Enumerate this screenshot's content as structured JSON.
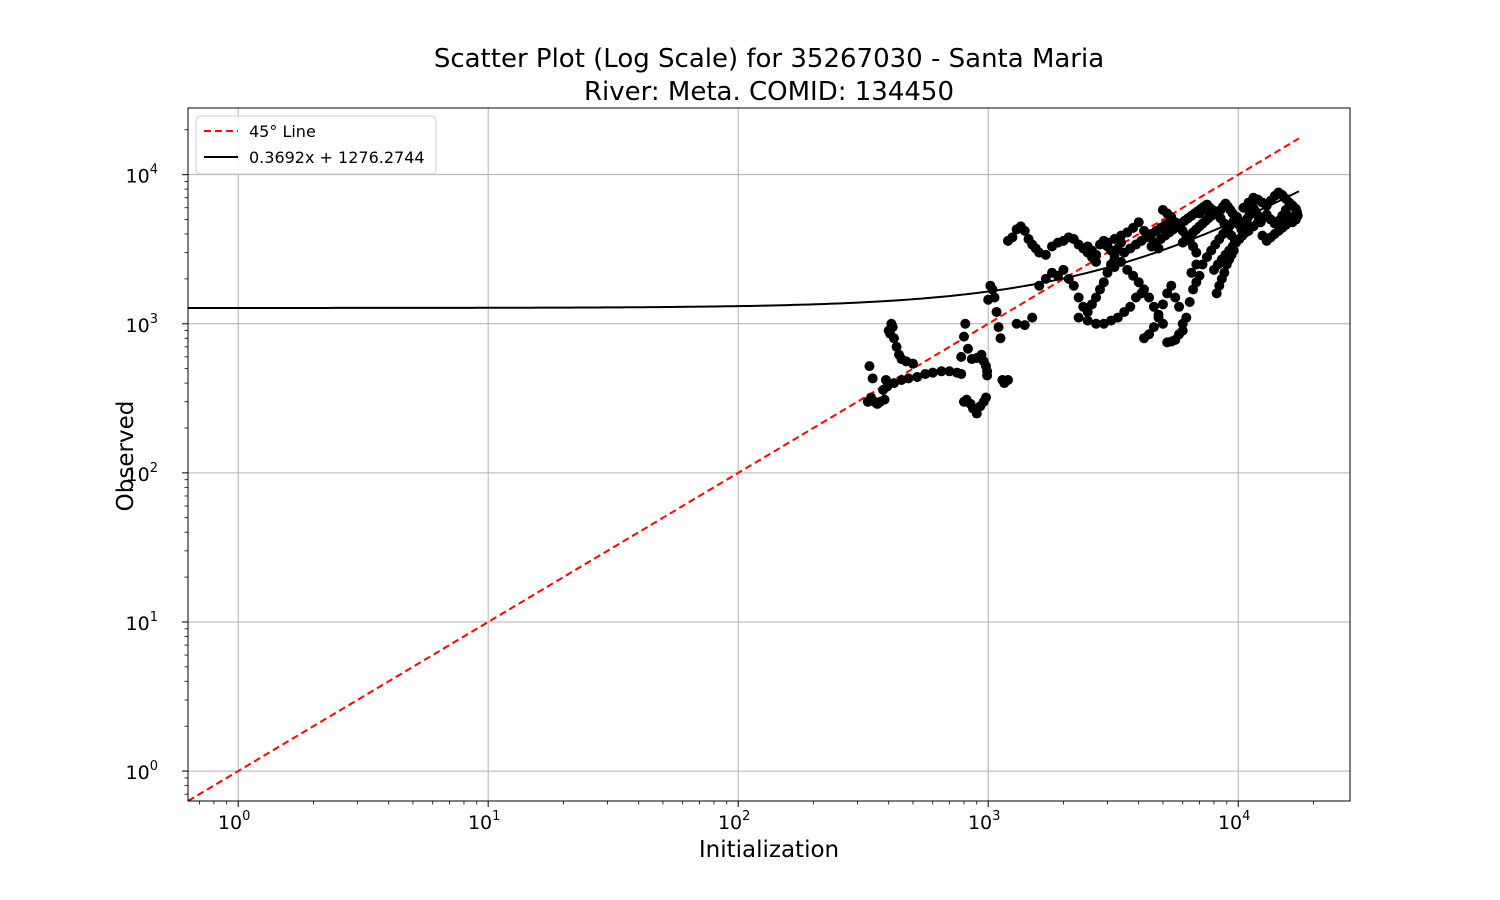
{
  "chart_data": {
    "type": "scatter",
    "title_line1": "Scatter Plot (Log Scale) for 35267030 - Santa Maria",
    "title_line2": "River: Meta. COMID: 134450",
    "xlabel": "Initialization",
    "ylabel": "Observed",
    "x_scale": "log",
    "y_scale": "log",
    "xlim": [
      0.63,
      28000
    ],
    "ylim": [
      0.63,
      28000
    ],
    "grid": true,
    "legend_position": "top-left",
    "x_ticks": [
      {
        "base": "10",
        "exp": "0",
        "value": 1
      },
      {
        "base": "10",
        "exp": "1",
        "value": 10
      },
      {
        "base": "10",
        "exp": "2",
        "value": 100
      },
      {
        "base": "10",
        "exp": "3",
        "value": 1000
      },
      {
        "base": "10",
        "exp": "4",
        "value": 10000
      }
    ],
    "y_ticks": [
      {
        "base": "10",
        "exp": "0",
        "value": 1
      },
      {
        "base": "10",
        "exp": "1",
        "value": 10
      },
      {
        "base": "10",
        "exp": "2",
        "value": 100
      },
      {
        "base": "10",
        "exp": "3",
        "value": 1000
      },
      {
        "base": "10",
        "exp": "4",
        "value": 10000
      }
    ],
    "legend": [
      {
        "label": "45° Line",
        "color": "#ff0000",
        "style": "dashed"
      },
      {
        "label": "0.3692x + 1276.2744",
        "color": "#000000",
        "style": "solid"
      }
    ],
    "lines": {
      "identity": {
        "x": [
          0.63,
          17500
        ],
        "y": [
          0.63,
          17500
        ],
        "color": "#ff0000"
      },
      "fit": {
        "slope": 0.3692,
        "intercept": 1276.2744,
        "x_range": [
          0.63,
          17500
        ],
        "color": "#000000"
      }
    },
    "points_color": "#000000",
    "points": [
      [
        330,
        300
      ],
      [
        335,
        520
      ],
      [
        340,
        320
      ],
      [
        345,
        430
      ],
      [
        350,
        300
      ],
      [
        360,
        290
      ],
      [
        370,
        300
      ],
      [
        380,
        360
      ],
      [
        385,
        310
      ],
      [
        390,
        420
      ],
      [
        395,
        380
      ],
      [
        400,
        900
      ],
      [
        405,
        860
      ],
      [
        410,
        1000
      ],
      [
        415,
        950
      ],
      [
        420,
        800
      ],
      [
        430,
        700
      ],
      [
        440,
        620
      ],
      [
        450,
        580
      ],
      [
        470,
        560
      ],
      [
        500,
        540
      ],
      [
        420,
        400
      ],
      [
        450,
        420
      ],
      [
        480,
        430
      ],
      [
        520,
        440
      ],
      [
        560,
        460
      ],
      [
        600,
        470
      ],
      [
        650,
        480
      ],
      [
        700,
        480
      ],
      [
        750,
        470
      ],
      [
        780,
        460
      ],
      [
        800,
        300
      ],
      [
        820,
        310
      ],
      [
        850,
        290
      ],
      [
        870,
        270
      ],
      [
        900,
        250
      ],
      [
        930,
        280
      ],
      [
        960,
        300
      ],
      [
        980,
        320
      ],
      [
        990,
        450
      ],
      [
        780,
        600
      ],
      [
        800,
        820
      ],
      [
        810,
        1000
      ],
      [
        830,
        680
      ],
      [
        860,
        580
      ],
      [
        900,
        590
      ],
      [
        940,
        620
      ],
      [
        960,
        560
      ],
      [
        980,
        520
      ],
      [
        990,
        480
      ],
      [
        1000,
        1450
      ],
      [
        1020,
        1800
      ],
      [
        1040,
        1700
      ],
      [
        1060,
        1500
      ],
      [
        1080,
        1200
      ],
      [
        1100,
        950
      ],
      [
        1120,
        800
      ],
      [
        1140,
        420
      ],
      [
        1160,
        400
      ],
      [
        1200,
        420
      ],
      [
        1200,
        3600
      ],
      [
        1250,
        3800
      ],
      [
        1300,
        4300
      ],
      [
        1350,
        4500
      ],
      [
        1400,
        4200
      ],
      [
        1450,
        3700
      ],
      [
        1500,
        3400
      ],
      [
        1550,
        3200
      ],
      [
        1600,
        3000
      ],
      [
        1700,
        2900
      ],
      [
        1800,
        3300
      ],
      [
        1900,
        3500
      ],
      [
        2000,
        3600
      ],
      [
        2100,
        3800
      ],
      [
        2200,
        3700
      ],
      [
        2300,
        3400
      ],
      [
        2400,
        3200
      ],
      [
        2500,
        3000
      ],
      [
        2600,
        2800
      ],
      [
        2700,
        2600
      ],
      [
        1300,
        1000
      ],
      [
        1400,
        980
      ],
      [
        1500,
        1100
      ],
      [
        1600,
        1800
      ],
      [
        1700,
        2000
      ],
      [
        1800,
        2200
      ],
      [
        1900,
        2100
      ],
      [
        2000,
        2300
      ],
      [
        2100,
        2000
      ],
      [
        2200,
        1800
      ],
      [
        2300,
        1500
      ],
      [
        2400,
        1300
      ],
      [
        2500,
        1200
      ],
      [
        2600,
        1350
      ],
      [
        2700,
        1500
      ],
      [
        2800,
        1700
      ],
      [
        2900,
        1900
      ],
      [
        3000,
        2200
      ],
      [
        3100,
        2500
      ],
      [
        3200,
        2700
      ],
      [
        2300,
        1100
      ],
      [
        2500,
        1050
      ],
      [
        2700,
        1000
      ],
      [
        2900,
        1000
      ],
      [
        3100,
        1050
      ],
      [
        3300,
        1100
      ],
      [
        3500,
        1200
      ],
      [
        3700,
        1300
      ],
      [
        3900,
        1500
      ],
      [
        4100,
        1600
      ],
      [
        3000,
        3500
      ],
      [
        3200,
        3700
      ],
      [
        3400,
        3900
      ],
      [
        3600,
        4100
      ],
      [
        3800,
        4400
      ],
      [
        4000,
        4800
      ],
      [
        4200,
        4200
      ],
      [
        4400,
        3900
      ],
      [
        4600,
        3500
      ],
      [
        4800,
        3200
      ],
      [
        3200,
        2400
      ],
      [
        3400,
        2600
      ],
      [
        3600,
        2300
      ],
      [
        3800,
        2100
      ],
      [
        4000,
        1900
      ],
      [
        4200,
        1700
      ],
      [
        4400,
        1500
      ],
      [
        4600,
        1300
      ],
      [
        4800,
        1100
      ],
      [
        5000,
        1000
      ],
      [
        4200,
        800
      ],
      [
        4400,
        850
      ],
      [
        4600,
        950
      ],
      [
        4800,
        1150
      ],
      [
        5000,
        1350
      ],
      [
        5200,
        1600
      ],
      [
        5400,
        1800
      ],
      [
        5600,
        1500
      ],
      [
        5800,
        1300
      ],
      [
        6000,
        1000
      ],
      [
        5200,
        750
      ],
      [
        5400,
        760
      ],
      [
        5600,
        780
      ],
      [
        5800,
        850
      ],
      [
        6000,
        900
      ],
      [
        6200,
        1100
      ],
      [
        6400,
        1400
      ],
      [
        6600,
        1700
      ],
      [
        6800,
        1900
      ],
      [
        7000,
        2100
      ],
      [
        5000,
        5800
      ],
      [
        5200,
        5500
      ],
      [
        5400,
        5200
      ],
      [
        5600,
        4800
      ],
      [
        5800,
        4500
      ],
      [
        6000,
        4200
      ],
      [
        6200,
        3900
      ],
      [
        6400,
        3600
      ],
      [
        6600,
        3300
      ],
      [
        6800,
        3000
      ],
      [
        7000,
        5500
      ],
      [
        7300,
        5800
      ],
      [
        7600,
        6000
      ],
      [
        7900,
        5700
      ],
      [
        8200,
        5400
      ],
      [
        8500,
        5100
      ],
      [
        8800,
        4700
      ],
      [
        9100,
        4300
      ],
      [
        9400,
        3900
      ],
      [
        9700,
        3600
      ],
      [
        7200,
        2500
      ],
      [
        7500,
        2800
      ],
      [
        7800,
        3100
      ],
      [
        8100,
        3400
      ],
      [
        8400,
        3700
      ],
      [
        8700,
        4000
      ],
      [
        9000,
        4300
      ],
      [
        9300,
        4600
      ],
      [
        9600,
        4900
      ],
      [
        9900,
        5200
      ],
      [
        8000,
        2300
      ],
      [
        8300,
        2500
      ],
      [
        8600,
        2700
      ],
      [
        8900,
        2900
      ],
      [
        9200,
        3100
      ],
      [
        9500,
        3300
      ],
      [
        9800,
        3500
      ],
      [
        10100,
        3700
      ],
      [
        10400,
        3900
      ],
      [
        10700,
        4100
      ],
      [
        10500,
        6000
      ],
      [
        11000,
        6500
      ],
      [
        11500,
        7000
      ],
      [
        12000,
        6800
      ],
      [
        12500,
        6500
      ],
      [
        13000,
        6200
      ],
      [
        13500,
        6700
      ],
      [
        14000,
        7200
      ],
      [
        14500,
        7600
      ],
      [
        15000,
        7300
      ],
      [
        15500,
        6900
      ],
      [
        16000,
        6500
      ],
      [
        16500,
        6200
      ],
      [
        17000,
        5900
      ],
      [
        17200,
        5600
      ],
      [
        17300,
        5300
      ],
      [
        17000,
        5000
      ],
      [
        16500,
        4800
      ],
      [
        16000,
        5200
      ],
      [
        15500,
        5500
      ],
      [
        11000,
        4200
      ],
      [
        11500,
        4500
      ],
      [
        12000,
        4800
      ],
      [
        12500,
        5100
      ],
      [
        13000,
        5400
      ],
      [
        13500,
        5000
      ],
      [
        14000,
        4700
      ],
      [
        14500,
        4900
      ],
      [
        15000,
        5300
      ],
      [
        15500,
        5800
      ],
      [
        4500,
        3300
      ],
      [
        4700,
        3500
      ],
      [
        4900,
        3700
      ],
      [
        5100,
        3900
      ],
      [
        5300,
        4100
      ],
      [
        5500,
        4300
      ],
      [
        5700,
        4500
      ],
      [
        5900,
        4700
      ],
      [
        6100,
        4900
      ],
      [
        6300,
        5100
      ],
      [
        6500,
        5300
      ],
      [
        6700,
        5500
      ],
      [
        6900,
        5700
      ],
      [
        7100,
        5900
      ],
      [
        7300,
        6100
      ],
      [
        7500,
        6300
      ],
      [
        7700,
        6000
      ],
      [
        7900,
        5800
      ],
      [
        8100,
        5600
      ],
      [
        8300,
        5400
      ],
      [
        8500,
        5800
      ],
      [
        8700,
        6100
      ],
      [
        8900,
        6400
      ],
      [
        9100,
        6100
      ],
      [
        9300,
        5800
      ],
      [
        9500,
        5500
      ],
      [
        9700,
        5200
      ],
      [
        9900,
        4900
      ],
      [
        10100,
        4600
      ],
      [
        10300,
        4300
      ],
      [
        10500,
        4500
      ],
      [
        10700,
        4800
      ],
      [
        10900,
        5100
      ],
      [
        11100,
        5400
      ],
      [
        11300,
        5700
      ],
      [
        11500,
        6000
      ],
      [
        11700,
        5700
      ],
      [
        11900,
        5400
      ],
      [
        12100,
        5100
      ],
      [
        12300,
        4800
      ],
      [
        3500,
        3000
      ],
      [
        3700,
        3200
      ],
      [
        3900,
        3400
      ],
      [
        4100,
        3600
      ],
      [
        4300,
        3800
      ],
      [
        4500,
        4000
      ],
      [
        4700,
        4200
      ],
      [
        4900,
        4400
      ],
      [
        5100,
        4600
      ],
      [
        5300,
        4800
      ],
      [
        6000,
        3500
      ],
      [
        6200,
        3700
      ],
      [
        6400,
        3900
      ],
      [
        6600,
        4100
      ],
      [
        6800,
        4300
      ],
      [
        7000,
        4500
      ],
      [
        7200,
        4700
      ],
      [
        7400,
        4900
      ],
      [
        7600,
        5100
      ],
      [
        7800,
        5300
      ],
      [
        2800,
        3400
      ],
      [
        2900,
        3600
      ],
      [
        3000,
        3300
      ],
      [
        3100,
        3100
      ],
      [
        3200,
        2900
      ],
      [
        3300,
        3200
      ],
      [
        3400,
        3500
      ],
      [
        2700,
        2900
      ],
      [
        2600,
        3100
      ],
      [
        2500,
        3300
      ],
      [
        9000,
        2500
      ],
      [
        9200,
        2700
      ],
      [
        9400,
        2900
      ],
      [
        9600,
        3100
      ],
      [
        8800,
        2200
      ],
      [
        8600,
        2000
      ],
      [
        8400,
        1800
      ],
      [
        8200,
        1600
      ],
      [
        6500,
        2200
      ],
      [
        6800,
        2500
      ],
      [
        13000,
        3600
      ],
      [
        13500,
        3800
      ],
      [
        14000,
        4000
      ],
      [
        14500,
        4200
      ],
      [
        15000,
        4400
      ],
      [
        15500,
        4600
      ],
      [
        16000,
        4800
      ],
      [
        16500,
        5100
      ],
      [
        17000,
        5400
      ],
      [
        12500,
        3900
      ]
    ]
  }
}
